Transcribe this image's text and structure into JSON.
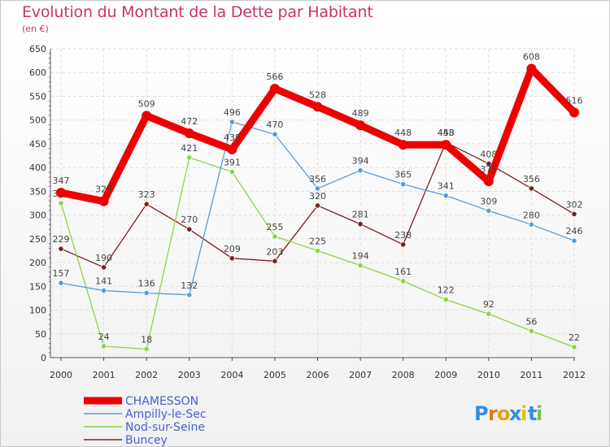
{
  "title": "Evolution du Montant de la Dette par Habitant",
  "subtitle": "(en €)",
  "logo": [
    "P",
    "r",
    "o",
    "x",
    "i",
    "t",
    "i"
  ],
  "chart_data": {
    "type": "line",
    "x": [
      "2000",
      "2001",
      "2002",
      "2003",
      "2004",
      "2005",
      "2006",
      "2007",
      "2008",
      "2009",
      "2010",
      "2011",
      "2012"
    ],
    "ylim": [
      0,
      650
    ],
    "yticks": [
      0,
      50,
      100,
      150,
      200,
      250,
      300,
      350,
      400,
      450,
      500,
      550,
      600,
      650
    ],
    "grid": true,
    "legend_position": "bottom-left",
    "series": [
      {
        "name": "CHAMESSON",
        "color": "#ee0000",
        "values": [
          347,
          329,
          509,
          472,
          438,
          566,
          528,
          489,
          448,
          448,
          371,
          608,
          516
        ],
        "labels": [
          "347",
          "329",
          "509",
          "472",
          "438",
          "566",
          "528",
          "489",
          "448",
          "448",
          "371",
          "608",
          "516"
        ]
      },
      {
        "name": "Ampilly-le-Sec",
        "color": "#5b9bd5",
        "values": [
          157,
          141,
          136,
          132,
          496,
          470,
          356,
          394,
          365,
          341,
          309,
          280,
          246
        ],
        "labels": [
          "157",
          "141",
          "136",
          "132",
          "496",
          "470",
          "356",
          "394",
          "365",
          "341",
          "309",
          "280",
          "246"
        ]
      },
      {
        "name": "Nod-sur-Seine",
        "color": "#8cd44d",
        "values": [
          325,
          24,
          18,
          421,
          391,
          255,
          225,
          194,
          161,
          122,
          92,
          56,
          22
        ],
        "labels": [
          "325",
          "24",
          "18",
          "421",
          "391",
          "255",
          "225",
          "194",
          "161",
          "122",
          "92",
          "56",
          "22"
        ]
      },
      {
        "name": "Buncey",
        "color": "#7a2020",
        "values": [
          229,
          190,
          323,
          270,
          209,
          203,
          320,
          281,
          238,
          453,
          408,
          356,
          302
        ],
        "labels": [
          "229",
          "190",
          "323",
          "270",
          "209",
          "203",
          "320",
          "281",
          "238",
          "453",
          "408",
          "356",
          "302"
        ]
      }
    ]
  }
}
